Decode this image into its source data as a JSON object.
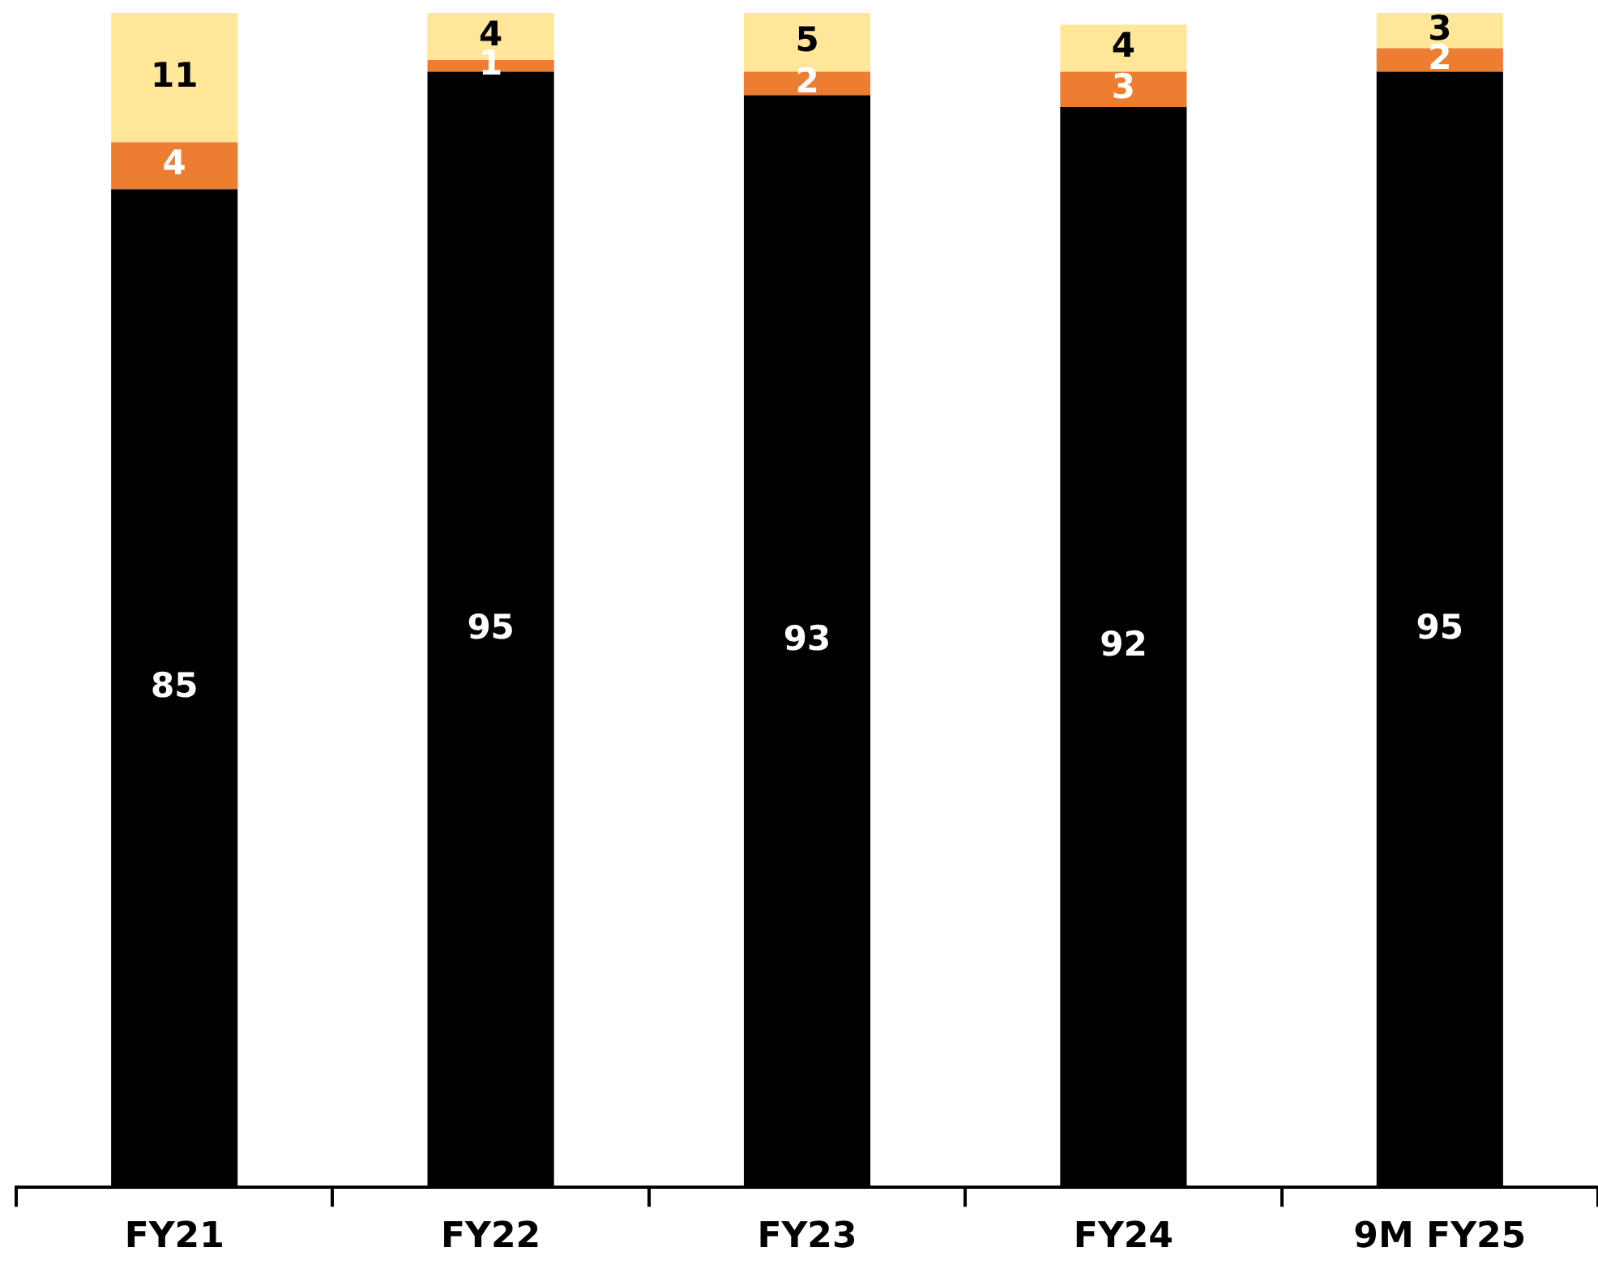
{
  "chart_data": {
    "type": "bar",
    "stacked": true,
    "data_labels": true,
    "legend": false,
    "grid": false,
    "tick_labels": "x",
    "categories": [
      "FY21",
      "FY22",
      "FY23",
      "FY24",
      "9M FY25"
    ],
    "series": [
      {
        "color": "#000000",
        "values": [
          85,
          95,
          93,
          92,
          95
        ]
      },
      {
        "color": "#ed7d31",
        "values": [
          4,
          1,
          2,
          3,
          2
        ]
      },
      {
        "color": "#ffe699",
        "values": [
          11,
          4,
          5,
          4,
          3
        ]
      }
    ]
  }
}
